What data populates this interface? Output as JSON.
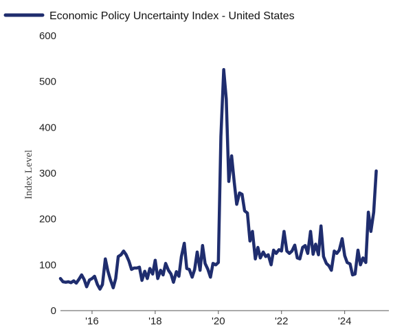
{
  "chart_data": {
    "type": "line",
    "title": "",
    "xlabel": "",
    "ylabel": "Index Level",
    "ylim": [
      0,
      600
    ],
    "yticks": [
      0,
      100,
      200,
      300,
      400,
      500,
      600
    ],
    "xlim": [
      2015.0,
      2025.4
    ],
    "xticks": [
      {
        "value": 2016,
        "label": "'16"
      },
      {
        "value": 2018,
        "label": "'18"
      },
      {
        "value": 2020,
        "label": "'20"
      },
      {
        "value": 2022,
        "label": "'22"
      },
      {
        "value": 2024,
        "label": "'24"
      }
    ],
    "legend_position": "top-left",
    "grid": false,
    "series": [
      {
        "name": "Economic Policy Uncertainty Index - United States",
        "color": "#1f2d6e",
        "points": [
          [
            2015.0,
            70
          ],
          [
            2015.08,
            63
          ],
          [
            2015.17,
            62
          ],
          [
            2015.25,
            63
          ],
          [
            2015.33,
            61
          ],
          [
            2015.42,
            65
          ],
          [
            2015.5,
            60
          ],
          [
            2015.58,
            68
          ],
          [
            2015.67,
            78
          ],
          [
            2015.75,
            68
          ],
          [
            2015.83,
            52
          ],
          [
            2015.92,
            67
          ],
          [
            2016.0,
            70
          ],
          [
            2016.08,
            75
          ],
          [
            2016.17,
            57
          ],
          [
            2016.25,
            47
          ],
          [
            2016.33,
            57
          ],
          [
            2016.42,
            113
          ],
          [
            2016.5,
            87
          ],
          [
            2016.58,
            68
          ],
          [
            2016.67,
            50
          ],
          [
            2016.75,
            70
          ],
          [
            2016.83,
            118
          ],
          [
            2016.92,
            122
          ],
          [
            2017.0,
            130
          ],
          [
            2017.08,
            122
          ],
          [
            2017.17,
            108
          ],
          [
            2017.25,
            90
          ],
          [
            2017.33,
            93
          ],
          [
            2017.42,
            93
          ],
          [
            2017.5,
            95
          ],
          [
            2017.58,
            66
          ],
          [
            2017.67,
            86
          ],
          [
            2017.75,
            70
          ],
          [
            2017.83,
            92
          ],
          [
            2017.92,
            80
          ],
          [
            2018.0,
            110
          ],
          [
            2018.08,
            70
          ],
          [
            2018.17,
            88
          ],
          [
            2018.25,
            78
          ],
          [
            2018.33,
            103
          ],
          [
            2018.42,
            88
          ],
          [
            2018.5,
            80
          ],
          [
            2018.58,
            62
          ],
          [
            2018.67,
            85
          ],
          [
            2018.75,
            75
          ],
          [
            2018.83,
            118
          ],
          [
            2018.92,
            147
          ],
          [
            2019.0,
            92
          ],
          [
            2019.08,
            90
          ],
          [
            2019.17,
            73
          ],
          [
            2019.25,
            90
          ],
          [
            2019.33,
            128
          ],
          [
            2019.42,
            88
          ],
          [
            2019.5,
            142
          ],
          [
            2019.58,
            103
          ],
          [
            2019.67,
            90
          ],
          [
            2019.75,
            73
          ],
          [
            2019.83,
            103
          ],
          [
            2019.92,
            100
          ],
          [
            2020.0,
            105
          ],
          [
            2020.08,
            380
          ],
          [
            2020.17,
            526
          ],
          [
            2020.25,
            462
          ],
          [
            2020.33,
            282
          ],
          [
            2020.42,
            338
          ],
          [
            2020.5,
            282
          ],
          [
            2020.58,
            232
          ],
          [
            2020.67,
            257
          ],
          [
            2020.75,
            254
          ],
          [
            2020.83,
            218
          ],
          [
            2020.92,
            213
          ],
          [
            2021.0,
            152
          ],
          [
            2021.08,
            173
          ],
          [
            2021.17,
            113
          ],
          [
            2021.25,
            138
          ],
          [
            2021.33,
            115
          ],
          [
            2021.42,
            128
          ],
          [
            2021.5,
            118
          ],
          [
            2021.58,
            122
          ],
          [
            2021.67,
            100
          ],
          [
            2021.75,
            132
          ],
          [
            2021.83,
            125
          ],
          [
            2021.92,
            133
          ],
          [
            2022.0,
            130
          ],
          [
            2022.08,
            173
          ],
          [
            2022.17,
            130
          ],
          [
            2022.25,
            125
          ],
          [
            2022.33,
            130
          ],
          [
            2022.42,
            143
          ],
          [
            2022.5,
            115
          ],
          [
            2022.58,
            113
          ],
          [
            2022.67,
            138
          ],
          [
            2022.75,
            142
          ],
          [
            2022.83,
            125
          ],
          [
            2022.92,
            173
          ],
          [
            2023.0,
            123
          ],
          [
            2023.08,
            145
          ],
          [
            2023.17,
            122
          ],
          [
            2023.25,
            185
          ],
          [
            2023.33,
            118
          ],
          [
            2023.42,
            103
          ],
          [
            2023.5,
            98
          ],
          [
            2023.58,
            88
          ],
          [
            2023.67,
            130
          ],
          [
            2023.75,
            125
          ],
          [
            2023.83,
            132
          ],
          [
            2023.92,
            157
          ],
          [
            2024.0,
            120
          ],
          [
            2024.08,
            105
          ],
          [
            2024.17,
            102
          ],
          [
            2024.25,
            78
          ],
          [
            2024.33,
            80
          ],
          [
            2024.42,
            132
          ],
          [
            2024.5,
            100
          ],
          [
            2024.58,
            115
          ],
          [
            2024.67,
            105
          ],
          [
            2024.75,
            215
          ],
          [
            2024.83,
            173
          ],
          [
            2024.92,
            215
          ],
          [
            2025.0,
            305
          ]
        ]
      }
    ]
  }
}
